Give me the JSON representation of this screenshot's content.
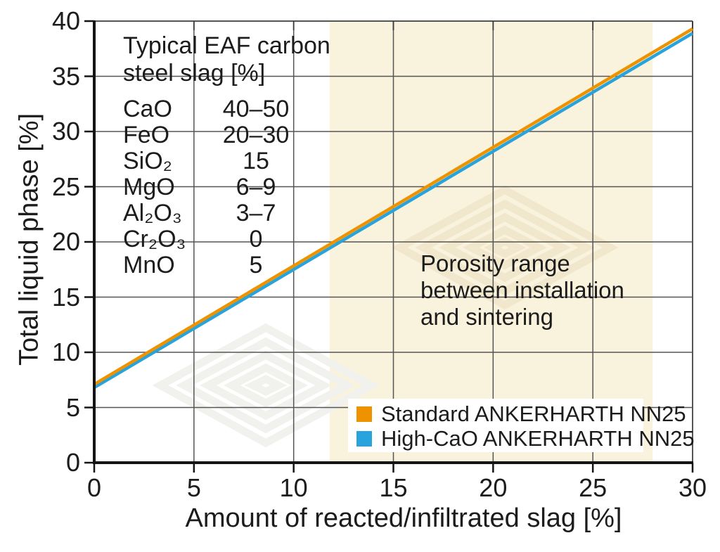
{
  "chart_data": {
    "type": "line",
    "title": "",
    "xlabel": "Amount of reacted/infiltrated slag [%]",
    "ylabel": "Total liquid phase [%]",
    "xlim": [
      0,
      30
    ],
    "ylim": [
      0,
      40
    ],
    "xticks": [
      0,
      5,
      10,
      15,
      20,
      25,
      30
    ],
    "yticks": [
      0,
      5,
      10,
      15,
      20,
      25,
      30,
      35,
      40
    ],
    "grid": true,
    "legend_position": "lower right",
    "series": [
      {
        "name": "Standard ANKERHARTH NN25",
        "color": "#ef9200",
        "x": [
          0,
          30
        ],
        "y": [
          7.1,
          39.3
        ]
      },
      {
        "name": "High-CaO ANKERHARTH NN25",
        "color": "#29a3db",
        "x": [
          0,
          30
        ],
        "y": [
          6.8,
          38.9
        ]
      }
    ],
    "shaded_region": {
      "x_start": 11.8,
      "x_end": 28,
      "color": "#f9f2dd",
      "label": "Porosity range between installation and sintering"
    }
  },
  "annotations": {
    "porosity": "Porosity range\nbetween installation\nand sintering"
  },
  "slag_table": {
    "title": "Typical EAF carbon\nsteel slag [%]",
    "rows": [
      {
        "name": "CaO",
        "value": "40–50"
      },
      {
        "name": "FeO",
        "value": "20–30"
      },
      {
        "name": "SiO₂",
        "value": "15"
      },
      {
        "name": "MgO",
        "value": "6–9"
      },
      {
        "name": "Al₂O₃",
        "value": "3–7"
      },
      {
        "name": "Cr₂O₃",
        "value": "0"
      },
      {
        "name": "MnO",
        "value": "5"
      }
    ]
  },
  "legend": {
    "items": [
      {
        "label": "Standard ANKERHARTH NN25",
        "color": "#ef9200"
      },
      {
        "label": "High-CaO ANKERHARTH NN25",
        "color": "#29a3db"
      }
    ]
  },
  "style_colors": {
    "axis": "#141414",
    "gridline": "#555555",
    "frame": "#555555",
    "watermark_on_white": "#f1f1ee",
    "watermark_on_shade": "#f1e7cd"
  }
}
